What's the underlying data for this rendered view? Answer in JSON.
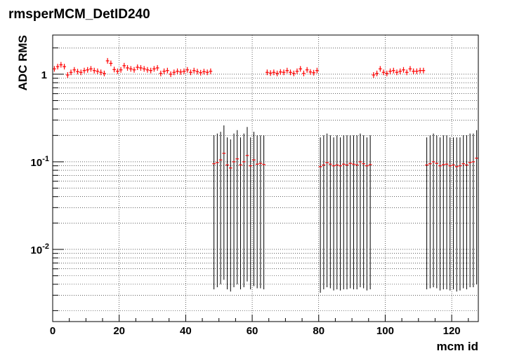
{
  "chart_data": {
    "type": "scatter",
    "title": "rmsperMCM_DetID240",
    "xlabel": "mcm id",
    "ylabel": "ADC RMS",
    "xlim": [
      0,
      128
    ],
    "ylim": [
      0.0015,
      2.8
    ],
    "yscale": "log",
    "grid": true,
    "legend": "none",
    "x_ticks": [
      "0",
      "20",
      "40",
      "60",
      "80",
      "100",
      "120"
    ],
    "y_ticks": [
      {
        "base": "1",
        "exp": ""
      },
      {
        "base": "10",
        "exp": "-1"
      },
      {
        "base": "10",
        "exp": "-2"
      }
    ],
    "colors": {
      "marker": "#ff0000",
      "error_bar": "#000000",
      "frame": "#000000"
    },
    "series": [
      {
        "values": [
          {
            "x": 0.5,
            "y": 1.15
          },
          {
            "x": 1.5,
            "y": 1.22
          },
          {
            "x": 2.5,
            "y": 1.28
          },
          {
            "x": 3.5,
            "y": 1.22
          },
          {
            "x": 4.5,
            "y": 0.98
          },
          {
            "x": 5.5,
            "y": 1.05
          },
          {
            "x": 6.5,
            "y": 1.12
          },
          {
            "x": 7.5,
            "y": 1.07
          },
          {
            "x": 8.5,
            "y": 1.05
          },
          {
            "x": 9.5,
            "y": 1.1
          },
          {
            "x": 10.5,
            "y": 1.12
          },
          {
            "x": 11.5,
            "y": 1.15
          },
          {
            "x": 12.5,
            "y": 1.1
          },
          {
            "x": 13.5,
            "y": 1.08
          },
          {
            "x": 14.5,
            "y": 1.05
          },
          {
            "x": 15.5,
            "y": 1.02
          },
          {
            "x": 16.5,
            "y": 1.42
          },
          {
            "x": 17.5,
            "y": 1.33
          },
          {
            "x": 18.5,
            "y": 1.13
          },
          {
            "x": 19.5,
            "y": 1.08
          },
          {
            "x": 20.5,
            "y": 1.12
          },
          {
            "x": 21.5,
            "y": 1.25
          },
          {
            "x": 22.5,
            "y": 1.18
          },
          {
            "x": 23.5,
            "y": 1.15
          },
          {
            "x": 24.5,
            "y": 1.12
          },
          {
            "x": 25.5,
            "y": 1.2
          },
          {
            "x": 26.5,
            "y": 1.18
          },
          {
            "x": 27.5,
            "y": 1.15
          },
          {
            "x": 28.5,
            "y": 1.12
          },
          {
            "x": 29.5,
            "y": 1.1
          },
          {
            "x": 30.5,
            "y": 1.15
          },
          {
            "x": 31.5,
            "y": 1.18
          },
          {
            "x": 32.5,
            "y": 1.02
          },
          {
            "x": 33.5,
            "y": 1.08
          },
          {
            "x": 34.5,
            "y": 1.1
          },
          {
            "x": 35.5,
            "y": 1.0
          },
          {
            "x": 36.5,
            "y": 1.05
          },
          {
            "x": 37.5,
            "y": 1.08
          },
          {
            "x": 38.5,
            "y": 1.06
          },
          {
            "x": 39.5,
            "y": 1.08
          },
          {
            "x": 40.5,
            "y": 1.12
          },
          {
            "x": 41.5,
            "y": 1.05
          },
          {
            "x": 42.5,
            "y": 1.1
          },
          {
            "x": 43.5,
            "y": 1.07
          },
          {
            "x": 44.5,
            "y": 1.04
          },
          {
            "x": 45.5,
            "y": 1.07
          },
          {
            "x": 46.5,
            "y": 1.05
          },
          {
            "x": 47.5,
            "y": 1.08
          },
          {
            "x": 48.5,
            "y": 0.095,
            "ylow": 0.0035,
            "yhigh": 0.2
          },
          {
            "x": 49.5,
            "y": 0.098,
            "ylow": 0.0037,
            "yhigh": 0.21
          },
          {
            "x": 50.5,
            "y": 0.105,
            "ylow": 0.004,
            "yhigh": 0.22
          },
          {
            "x": 51.5,
            "y": 0.125,
            "ylow": 0.0045,
            "yhigh": 0.26
          },
          {
            "x": 52.5,
            "y": 0.092,
            "ylow": 0.0035,
            "yhigh": 0.19
          },
          {
            "x": 53.5,
            "y": 0.085,
            "ylow": 0.0033,
            "yhigh": 0.18
          },
          {
            "x": 54.5,
            "y": 0.1,
            "ylow": 0.0037,
            "yhigh": 0.21
          },
          {
            "x": 55.5,
            "y": 0.108,
            "ylow": 0.004,
            "yhigh": 0.23
          },
          {
            "x": 56.5,
            "y": 0.092,
            "ylow": 0.0035,
            "yhigh": 0.19
          },
          {
            "x": 57.5,
            "y": 0.1,
            "ylow": 0.0037,
            "yhigh": 0.21
          },
          {
            "x": 58.5,
            "y": 0.118,
            "ylow": 0.0043,
            "yhigh": 0.25
          },
          {
            "x": 59.5,
            "y": 0.09,
            "ylow": 0.0035,
            "yhigh": 0.19
          },
          {
            "x": 60.5,
            "y": 0.105,
            "ylow": 0.0038,
            "yhigh": 0.22
          },
          {
            "x": 61.5,
            "y": 0.094,
            "ylow": 0.0036,
            "yhigh": 0.2
          },
          {
            "x": 62.5,
            "y": 0.096,
            "ylow": 0.0036,
            "yhigh": 0.2
          },
          {
            "x": 63.5,
            "y": 0.093,
            "ylow": 0.0035,
            "yhigh": 0.2
          },
          {
            "x": 64.5,
            "y": 1.05
          },
          {
            "x": 65.5,
            "y": 1.03
          },
          {
            "x": 66.5,
            "y": 1.05
          },
          {
            "x": 67.5,
            "y": 1.02
          },
          {
            "x": 68.5,
            "y": 1.06
          },
          {
            "x": 69.5,
            "y": 1.05
          },
          {
            "x": 70.5,
            "y": 1.1
          },
          {
            "x": 71.5,
            "y": 1.05
          },
          {
            "x": 72.5,
            "y": 1.02
          },
          {
            "x": 73.5,
            "y": 1.08
          },
          {
            "x": 74.5,
            "y": 1.15
          },
          {
            "x": 75.5,
            "y": 1.02
          },
          {
            "x": 76.5,
            "y": 1.12
          },
          {
            "x": 77.5,
            "y": 1.06
          },
          {
            "x": 78.5,
            "y": 1.04
          },
          {
            "x": 79.5,
            "y": 1.1
          },
          {
            "x": 80.5,
            "y": 0.088,
            "ylow": 0.0032,
            "yhigh": 0.19
          },
          {
            "x": 81.5,
            "y": 0.092,
            "ylow": 0.0035,
            "yhigh": 0.2
          },
          {
            "x": 82.5,
            "y": 0.098,
            "ylow": 0.0037,
            "yhigh": 0.21
          },
          {
            "x": 83.5,
            "y": 0.094,
            "ylow": 0.0036,
            "yhigh": 0.2
          },
          {
            "x": 84.5,
            "y": 0.09,
            "ylow": 0.0034,
            "yhigh": 0.19
          },
          {
            "x": 85.5,
            "y": 0.092,
            "ylow": 0.0035,
            "yhigh": 0.2
          },
          {
            "x": 86.5,
            "y": 0.09,
            "ylow": 0.0034,
            "yhigh": 0.19
          },
          {
            "x": 87.5,
            "y": 0.094,
            "ylow": 0.0035,
            "yhigh": 0.2
          },
          {
            "x": 88.5,
            "y": 0.092,
            "ylow": 0.0035,
            "yhigh": 0.2
          },
          {
            "x": 89.5,
            "y": 0.096,
            "ylow": 0.0036,
            "yhigh": 0.2
          },
          {
            "x": 90.5,
            "y": 0.094,
            "ylow": 0.0035,
            "yhigh": 0.2
          },
          {
            "x": 91.5,
            "y": 0.092,
            "ylow": 0.0035,
            "yhigh": 0.2
          },
          {
            "x": 92.5,
            "y": 0.1,
            "ylow": 0.0037,
            "yhigh": 0.21
          },
          {
            "x": 93.5,
            "y": 0.095,
            "ylow": 0.0036,
            "yhigh": 0.2
          },
          {
            "x": 94.5,
            "y": 0.09,
            "ylow": 0.0034,
            "yhigh": 0.19
          },
          {
            "x": 95.5,
            "y": 0.093,
            "ylow": 0.0035,
            "yhigh": 0.2
          },
          {
            "x": 96.5,
            "y": 0.98
          },
          {
            "x": 97.5,
            "y": 1.02
          },
          {
            "x": 98.5,
            "y": 1.15
          },
          {
            "x": 99.5,
            "y": 1.05
          },
          {
            "x": 100.5,
            "y": 1.02
          },
          {
            "x": 101.5,
            "y": 1.08
          },
          {
            "x": 102.5,
            "y": 1.1
          },
          {
            "x": 103.5,
            "y": 1.05
          },
          {
            "x": 104.5,
            "y": 1.08
          },
          {
            "x": 105.5,
            "y": 1.12
          },
          {
            "x": 106.5,
            "y": 1.05
          },
          {
            "x": 107.5,
            "y": 1.15
          },
          {
            "x": 108.5,
            "y": 1.08
          },
          {
            "x": 109.5,
            "y": 1.08
          },
          {
            "x": 110.5,
            "y": 1.1
          },
          {
            "x": 111.5,
            "y": 1.1
          },
          {
            "x": 112.5,
            "y": 0.092,
            "ylow": 0.0035,
            "yhigh": 0.19
          },
          {
            "x": 113.5,
            "y": 0.095,
            "ylow": 0.0036,
            "yhigh": 0.2
          },
          {
            "x": 114.5,
            "y": 0.1,
            "ylow": 0.0037,
            "yhigh": 0.21
          },
          {
            "x": 115.5,
            "y": 0.096,
            "ylow": 0.0036,
            "yhigh": 0.2
          },
          {
            "x": 116.5,
            "y": 0.09,
            "ylow": 0.0034,
            "yhigh": 0.19
          },
          {
            "x": 117.5,
            "y": 0.093,
            "ylow": 0.0035,
            "yhigh": 0.2
          },
          {
            "x": 118.5,
            "y": 0.094,
            "ylow": 0.0035,
            "yhigh": 0.2
          },
          {
            "x": 119.5,
            "y": 0.09,
            "ylow": 0.0034,
            "yhigh": 0.19
          },
          {
            "x": 120.5,
            "y": 0.092,
            "ylow": 0.0035,
            "yhigh": 0.19
          },
          {
            "x": 121.5,
            "y": 0.088,
            "ylow": 0.0033,
            "yhigh": 0.19
          },
          {
            "x": 122.5,
            "y": 0.09,
            "ylow": 0.0034,
            "yhigh": 0.19
          },
          {
            "x": 123.5,
            "y": 0.095,
            "ylow": 0.0036,
            "yhigh": 0.2
          },
          {
            "x": 124.5,
            "y": 0.092,
            "ylow": 0.0035,
            "yhigh": 0.2
          },
          {
            "x": 125.5,
            "y": 0.098,
            "ylow": 0.0037,
            "yhigh": 0.21
          },
          {
            "x": 126.5,
            "y": 0.1,
            "ylow": 0.0037,
            "yhigh": 0.21
          },
          {
            "x": 127.5,
            "y": 0.11,
            "ylow": 0.004,
            "yhigh": 0.23
          }
        ]
      }
    ]
  }
}
